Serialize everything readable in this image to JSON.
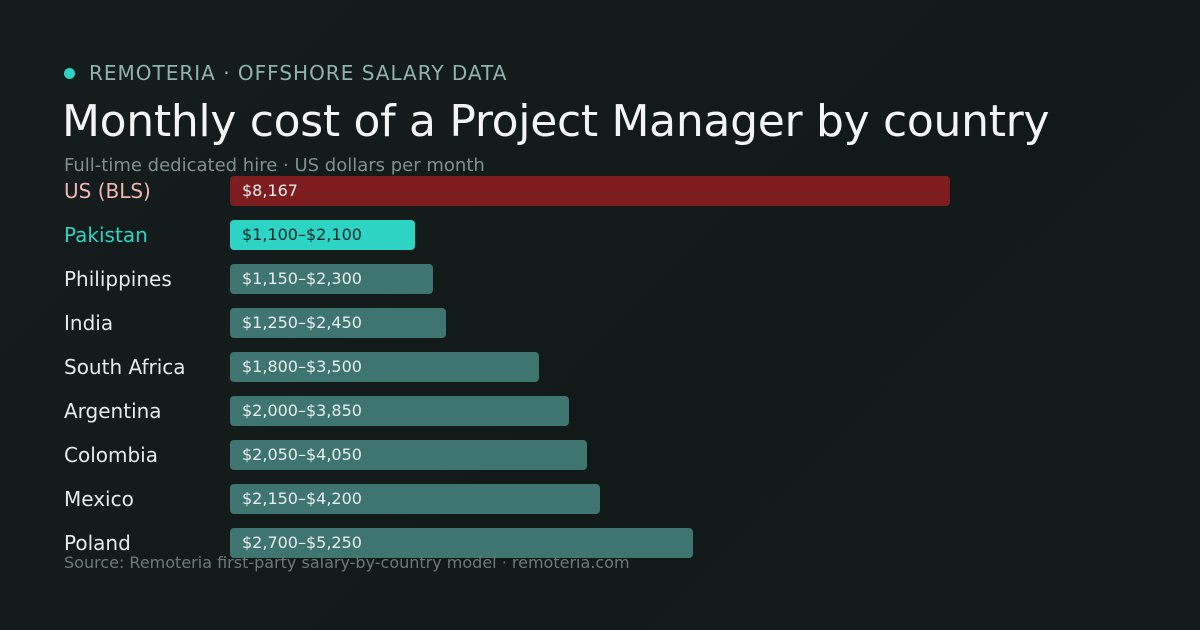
{
  "brand": "REMOTERIA · OFFSHORE SALARY DATA",
  "source": "Source: Remoteria first-party salary-by-country model · remoteria.com",
  "chart_data": {
    "type": "bar",
    "orientation": "horizontal",
    "title": "Monthly cost of a Project Manager by country",
    "subtitle": "Full-time dedicated hire · US dollars per month",
    "xlim": [
      0,
      8167
    ],
    "grid": false,
    "legend": "none",
    "unit": "USD per month",
    "rows": [
      {
        "label": "US (BLS)",
        "bar_label": "$8,167",
        "min": 8167,
        "max": 8167,
        "color": "#7d1d1f",
        "label_color": "#f3b5b3"
      },
      {
        "label": "Pakistan",
        "bar_label": "$1,100–$2,100",
        "min": 1100,
        "max": 2100,
        "color": "#2dd4c4",
        "label_color": "#2dd4c4",
        "bar_text_color": "#0e2a28"
      },
      {
        "label": "Philippines",
        "bar_label": "$1,150–$2,300",
        "min": 1150,
        "max": 2300,
        "color": "#3f7570"
      },
      {
        "label": "India",
        "bar_label": "$1,250–$2,450",
        "min": 1250,
        "max": 2450,
        "color": "#3f7570"
      },
      {
        "label": "South Africa",
        "bar_label": "$1,800–$3,500",
        "min": 1800,
        "max": 3500,
        "color": "#3f7570"
      },
      {
        "label": "Argentina",
        "bar_label": "$2,000–$3,850",
        "min": 2000,
        "max": 3850,
        "color": "#3f7570"
      },
      {
        "label": "Colombia",
        "bar_label": "$2,050–$4,050",
        "min": 2050,
        "max": 4050,
        "color": "#3f7570"
      },
      {
        "label": "Mexico",
        "bar_label": "$2,150–$4,200",
        "min": 2150,
        "max": 4200,
        "color": "#3f7570"
      },
      {
        "label": "Poland",
        "bar_label": "$2,700–$5,250",
        "min": 2700,
        "max": 5250,
        "color": "#3f7570"
      }
    ]
  }
}
